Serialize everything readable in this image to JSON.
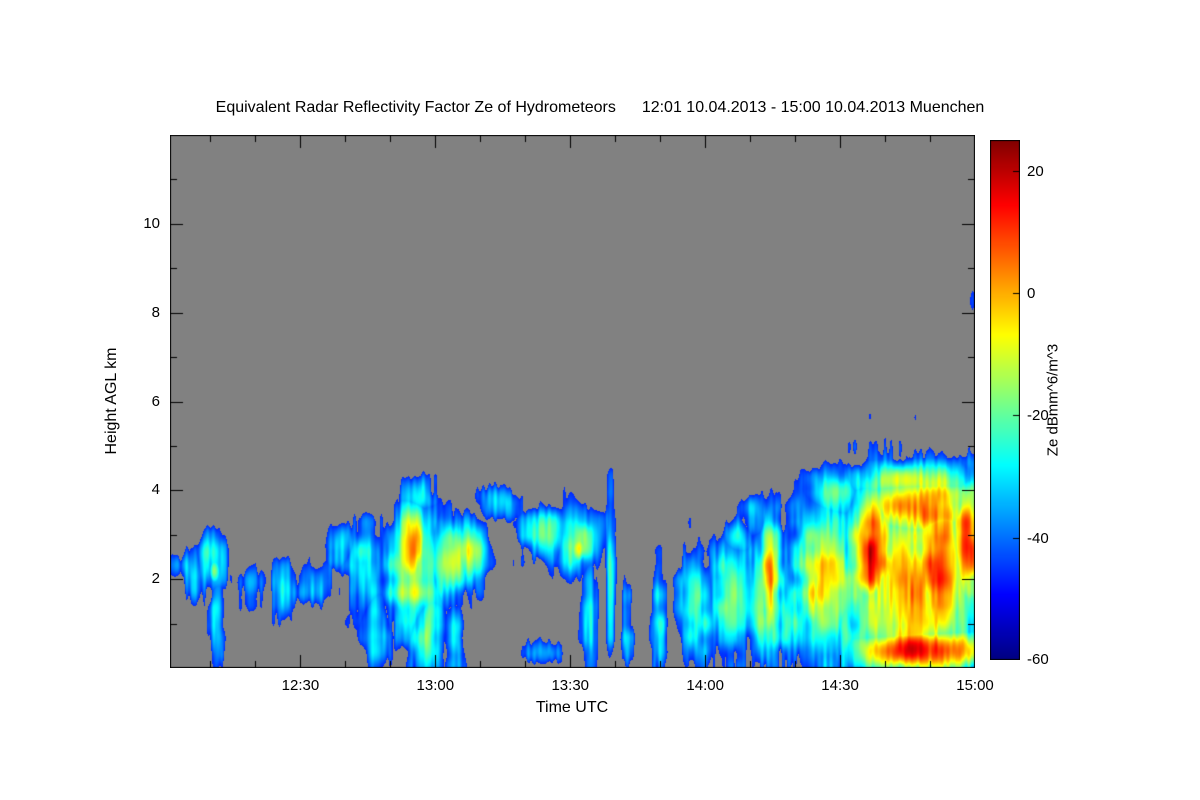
{
  "page": {
    "background": "#ffffff"
  },
  "chart_data": {
    "type": "heatmap",
    "title": "Equivalent Radar Reflectivity Factor Ze of Hydrometeors",
    "subtitle": "12:01 10.04.2013 - 15:00 10.04.2013 Muenchen",
    "xlabel": "Time UTC",
    "ylabel": "Height AGL km",
    "x_range_hours": [
      12.0167,
      15.0
    ],
    "x_tick_labels": [
      "12:30",
      "13:00",
      "13:30",
      "14:00",
      "14:30",
      "15:00"
    ],
    "x_tick_hours": [
      12.5,
      13.0,
      13.5,
      14.0,
      14.5,
      15.0
    ],
    "x_minor_step_hours": 0.1666667,
    "y_range_km": [
      0,
      12
    ],
    "y_tick_labels": [
      "2",
      "4",
      "6",
      "8",
      "10"
    ],
    "y_ticks_km": [
      2,
      4,
      6,
      8,
      10
    ],
    "y_minor_ticks_km": [
      1,
      3,
      5,
      7,
      9,
      11
    ],
    "colorbar": {
      "label": "Ze dBmm^6/m^3",
      "min": -60,
      "max": 25,
      "ticks": [
        20,
        0,
        -20,
        -40,
        -60
      ],
      "tick_labels": [
        "20",
        "0",
        "-20",
        "-40",
        "-60"
      ],
      "colormap": "jet"
    },
    "nodata_color": "#818181",
    "nodata_threshold_dbz": -46,
    "echo_cells_format": [
      "time_hours",
      "height_km",
      "sigma_t_hours",
      "sigma_h_km",
      "peak_dbz"
    ],
    "echo_cells": [
      [
        12.04,
        2.3,
        0.025,
        0.35,
        -38
      ],
      [
        12.1,
        2.2,
        0.04,
        0.5,
        -30
      ],
      [
        12.17,
        2.4,
        0.05,
        0.6,
        -24
      ],
      [
        12.18,
        2.2,
        0.02,
        0.25,
        -14
      ],
      [
        12.19,
        1.0,
        0.025,
        1.0,
        -30
      ],
      [
        12.32,
        1.9,
        0.05,
        0.4,
        -36
      ],
      [
        12.44,
        1.8,
        0.05,
        0.5,
        -30
      ],
      [
        12.55,
        1.9,
        0.06,
        0.5,
        -32
      ],
      [
        12.65,
        2.8,
        0.05,
        0.45,
        -28
      ],
      [
        12.74,
        2.2,
        0.07,
        0.8,
        -24
      ],
      [
        12.78,
        0.9,
        0.04,
        0.9,
        -28
      ],
      [
        12.91,
        2.7,
        0.045,
        0.8,
        8
      ],
      [
        12.92,
        2.2,
        0.09,
        1.1,
        -10
      ],
      [
        12.93,
        3.9,
        0.06,
        0.35,
        -26
      ],
      [
        12.97,
        0.8,
        0.05,
        0.9,
        -18
      ],
      [
        13.05,
        2.4,
        0.07,
        0.7,
        -8
      ],
      [
        13.07,
        0.6,
        0.03,
        0.7,
        -26
      ],
      [
        13.12,
        2.6,
        0.06,
        0.6,
        -14
      ],
      [
        13.24,
        3.7,
        0.07,
        0.3,
        -26
      ],
      [
        13.4,
        0.35,
        0.06,
        0.3,
        -34
      ],
      [
        13.42,
        3.0,
        0.09,
        0.5,
        -20
      ],
      [
        13.52,
        2.9,
        0.07,
        0.6,
        -16
      ],
      [
        13.53,
        2.7,
        0.03,
        0.3,
        -10
      ],
      [
        13.57,
        1.2,
        0.025,
        1.3,
        -30
      ],
      [
        13.65,
        2.2,
        0.015,
        1.6,
        -28
      ],
      [
        13.71,
        0.8,
        0.018,
        0.9,
        -32
      ],
      [
        13.83,
        1.1,
        0.025,
        1.1,
        -30
      ],
      [
        13.97,
        1.4,
        0.06,
        1.0,
        -22
      ],
      [
        14.1,
        1.6,
        0.08,
        1.1,
        -20
      ],
      [
        14.12,
        2.9,
        0.05,
        0.4,
        -30
      ],
      [
        14.19,
        3.4,
        0.05,
        0.45,
        -32
      ],
      [
        14.23,
        1.6,
        0.07,
        1.2,
        -16
      ],
      [
        14.24,
        2.0,
        0.03,
        1.1,
        4
      ],
      [
        14.31,
        1.3,
        0.05,
        1.0,
        -24
      ],
      [
        14.44,
        2.0,
        0.09,
        1.5,
        -4
      ],
      [
        14.47,
        3.9,
        0.08,
        0.5,
        -20
      ],
      [
        14.52,
        0.8,
        0.04,
        0.8,
        -20
      ],
      [
        14.62,
        2.6,
        0.07,
        1.1,
        14
      ],
      [
        14.76,
        1.8,
        0.22,
        1.8,
        2
      ],
      [
        14.8,
        3.6,
        0.18,
        0.6,
        6
      ],
      [
        14.78,
        4.2,
        0.2,
        0.35,
        -10
      ],
      [
        14.78,
        4.45,
        0.2,
        0.22,
        -28
      ],
      [
        14.8,
        0.4,
        0.22,
        0.4,
        16
      ],
      [
        14.87,
        2.2,
        0.08,
        1.4,
        15
      ],
      [
        14.97,
        2.8,
        0.05,
        1.1,
        12
      ],
      [
        14.99,
        8.3,
        0.012,
        0.3,
        -40
      ]
    ]
  }
}
